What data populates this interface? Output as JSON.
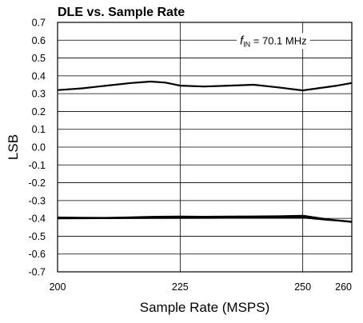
{
  "chart_data": {
    "type": "line",
    "title": "DLE vs. Sample Rate",
    "xlabel": "Sample Rate (MSPS)",
    "ylabel": "LSB",
    "xlim": [
      200,
      260
    ],
    "ylim": [
      -0.7,
      0.7
    ],
    "x_ticks": [
      200,
      225,
      250,
      260
    ],
    "x_tick_labels": [
      "200",
      "225",
      "250",
      "260"
    ],
    "y_ticks": [
      0.7,
      0.6,
      0.5,
      0.4,
      0.3,
      0.2,
      0.1,
      0.0,
      -0.1,
      -0.2,
      -0.3,
      -0.4,
      -0.5,
      -0.6,
      -0.7
    ],
    "y_tick_labels": [
      "0.7",
      "0.6",
      "0.5",
      "0.4",
      "0.3",
      "0.2",
      "0.1",
      "0.0",
      "-0.1",
      "-0.2",
      "-0.3",
      "-0.4",
      "-0.5",
      "-0.6",
      "-0.7"
    ],
    "grid": true,
    "annotation": {
      "italic": "f",
      "subscript": "IN",
      "rest": " = 70.1 MHz"
    },
    "series": [
      {
        "x": [
          200,
          205,
          210,
          215,
          219,
          222,
          225,
          230,
          235,
          240,
          245,
          250,
          253,
          257,
          260
        ],
        "y": [
          0.32,
          0.33,
          0.345,
          0.36,
          0.368,
          0.362,
          0.345,
          0.34,
          0.345,
          0.35,
          0.335,
          0.318,
          0.33,
          0.345,
          0.36
        ]
      },
      {
        "x": [
          200,
          205,
          210,
          215,
          220,
          225,
          230,
          235,
          240,
          245,
          250,
          255,
          260
        ],
        "y": [
          -0.395,
          -0.396,
          -0.397,
          -0.394,
          -0.391,
          -0.39,
          -0.391,
          -0.39,
          -0.389,
          -0.388,
          -0.385,
          -0.405,
          -0.42
        ]
      },
      {
        "x": [
          200,
          210,
          220,
          230,
          240,
          250,
          255,
          260
        ],
        "y": [
          -0.4,
          -0.399,
          -0.398,
          -0.397,
          -0.396,
          -0.395,
          -0.408,
          -0.418
        ]
      }
    ]
  }
}
